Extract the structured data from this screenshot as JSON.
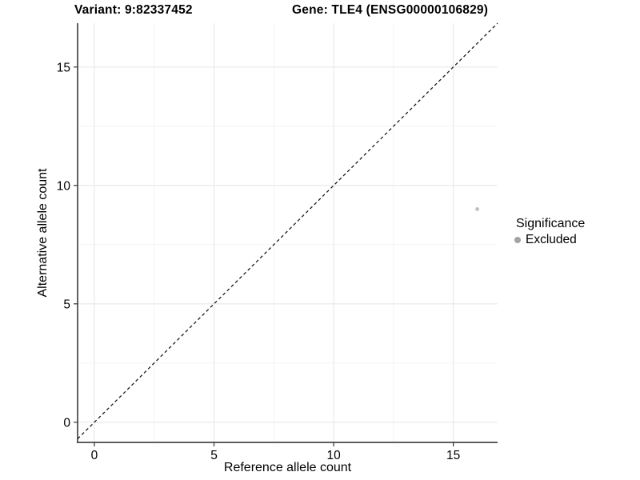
{
  "header": {
    "variant_title": "Variant: 9:82337452",
    "gene_title": "Gene: TLE4 (ENSG00000106829)"
  },
  "chart_data": {
    "type": "scatter",
    "xlabel": "Reference allele count",
    "ylabel": "Alternative allele count",
    "xlim": [
      -0.7,
      16.85
    ],
    "ylim": [
      -0.85,
      16.85
    ],
    "xticks": [
      0,
      5,
      10,
      15
    ],
    "yticks": [
      0,
      5,
      10,
      15
    ],
    "xminor": [
      2.5,
      7.5,
      12.5
    ],
    "yminor": [
      2.5,
      7.5,
      12.5
    ],
    "grid": "major and minor gridlines on, white background",
    "points": [
      {
        "x": 16,
        "y": 9,
        "series": "Excluded",
        "color": "#bfbfbf",
        "size": 2.4
      }
    ],
    "reference_line": {
      "kind": "identity y = x",
      "slope": 1,
      "intercept": 0,
      "style": "dashed",
      "color": "#141414"
    },
    "legend": {
      "title": "Significance",
      "position": "right",
      "items": [
        {
          "label": "Excluded",
          "color": "#a3a3a3"
        }
      ]
    }
  },
  "colors": {
    "grid_major": "#e7e7e7",
    "grid_minor": "#f2f2f2",
    "axis_line": "#474747",
    "tick": "#333333",
    "text": "#000000"
  }
}
